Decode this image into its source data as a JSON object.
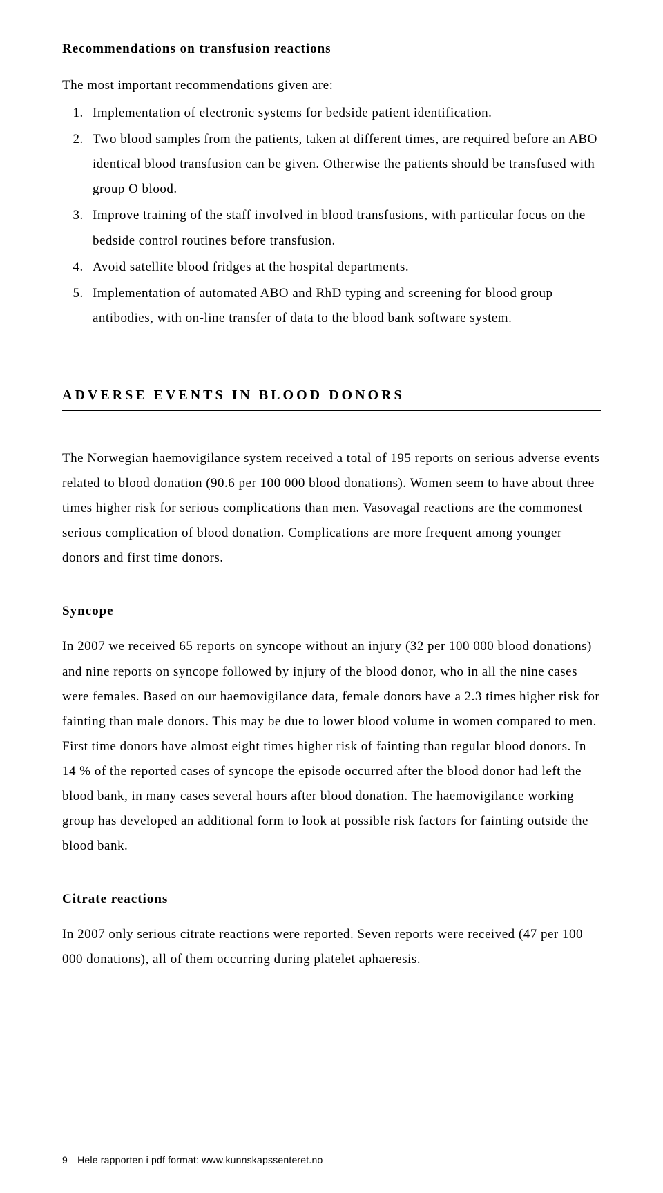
{
  "recommendations": {
    "heading": "Recommendations on transfusion reactions",
    "intro": "The most important recommendations given are:",
    "items": [
      "Implementation of electronic systems for bedside patient identification.",
      "Two blood samples from the patients, taken at different times, are required before an ABO identical blood transfusion can be given. Otherwise the patients should be transfused with group O blood.",
      "Improve training of the staff involved in blood transfusions, with particular focus on the bedside control routines before transfusion.",
      "Avoid satellite blood fridges at the hospital departments.",
      "Implementation of automated ABO and RhD typing and screening for blood group antibodies, with on-line transfer of data to the blood bank software system."
    ]
  },
  "adverse": {
    "title": "ADVERSE EVENTS IN BLOOD DONORS",
    "para": "The Norwegian haemovigilance system received a total of 195 reports on serious adverse events related to blood donation (90.6 per 100 000 blood donations). Women seem to have about three times higher risk for serious complications than men. Vasovagal reactions are the commonest serious complication of blood donation. Complications are more frequent among younger donors and first time donors."
  },
  "syncope": {
    "heading": "Syncope",
    "para": "In 2007 we received 65 reports on syncope without an injury (32 per 100 000 blood donations) and nine reports on syncope followed by injury of the blood donor, who in all the nine cases were females. Based on our haemovigilance data, female donors have a 2.3 times higher risk for fainting than male donors. This may be due to lower blood volume in women compared to men. First time donors have almost eight times higher risk of fainting than regular blood donors. In 14 % of the reported cases of syncope the episode occurred after the blood donor had left the blood bank, in many cases several hours after blood donation. The haemovigilance working group has developed an additional form to look at possible risk factors for fainting outside the blood bank."
  },
  "citrate": {
    "heading": "Citrate reactions",
    "para": "In 2007 only serious citrate reactions were reported. Seven reports were received (47 per 100 000 donations), all of them occurring during platelet aphaeresis."
  },
  "footer": {
    "page_num": "9",
    "text": "Hele rapporten i pdf format: www.kunnskapssenteret.no"
  }
}
